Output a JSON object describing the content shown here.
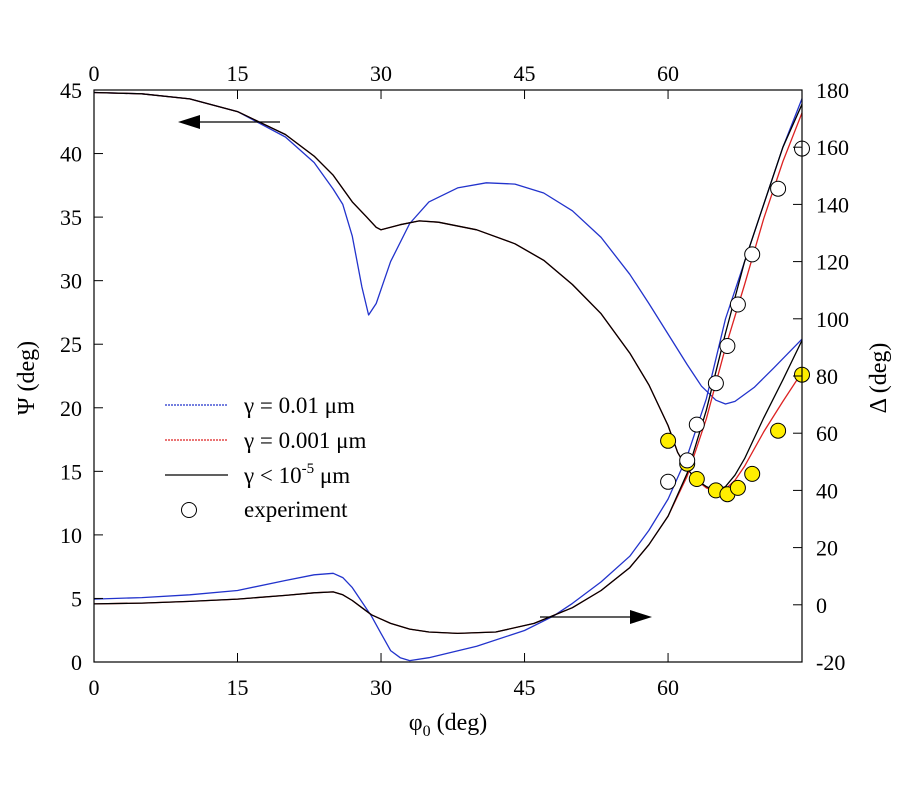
{
  "chart_data": {
    "type": "line",
    "xlabel": "φ0 (deg)",
    "ylabel_left": "Ψ (deg)",
    "ylabel_right": "Δ (deg)",
    "xlim": [
      0,
      74
    ],
    "ylim_left": [
      0,
      45
    ],
    "ylim_right": [
      -20,
      180
    ],
    "x_ticks": [
      0,
      15,
      30,
      45,
      60
    ],
    "x_tick_labels": [
      "0",
      "15",
      "30",
      "45",
      "60"
    ],
    "y_left_ticks": [
      0,
      5,
      10,
      15,
      20,
      25,
      30,
      35,
      40,
      45
    ],
    "y_left_tick_labels": [
      "0",
      "5",
      "10",
      "15",
      "20",
      "25",
      "30",
      "35",
      "40",
      "45"
    ],
    "y_right_ticks": [
      -20,
      0,
      20,
      40,
      60,
      80,
      100,
      120,
      140,
      160,
      180
    ],
    "y_right_tick_labels": [
      "-20",
      "0",
      "20",
      "40",
      "60",
      "80",
      "100",
      "120",
      "140",
      "160",
      "180"
    ],
    "legend": {
      "placement": "center-left",
      "entries": [
        {
          "label": "γ = 0.01 μm",
          "style": "line",
          "color": "#2233cc"
        },
        {
          "label": "γ = 0.001 μm",
          "style": "line",
          "color": "#dd2222"
        },
        {
          "label_main": "γ < 10",
          "label_sup": "-5",
          "label_tail": " μm",
          "style": "line",
          "color": "#000000"
        },
        {
          "label": "experiment",
          "style": "open-circle",
          "color": "#000000"
        }
      ]
    },
    "annotations": [
      {
        "type": "arrow",
        "meaning": "upper curves refer to left axis (Ψ)",
        "direction": "left"
      },
      {
        "type": "arrow",
        "meaning": "lower curves refer to right axis (Δ)",
        "direction": "right"
      }
    ],
    "series": [
      {
        "name": "Ψ, γ = 0.01 μm",
        "axis": "left",
        "color": "#2233cc",
        "points": [
          [
            0,
            44.8
          ],
          [
            5,
            44.7
          ],
          [
            10,
            44.3
          ],
          [
            15,
            43.3
          ],
          [
            20,
            41.3
          ],
          [
            23,
            39.3
          ],
          [
            25,
            37.2
          ],
          [
            26,
            36
          ],
          [
            27,
            33.5
          ],
          [
            28,
            29.5
          ],
          [
            28.7,
            27.3
          ],
          [
            29.5,
            28.2
          ],
          [
            31,
            31.5
          ],
          [
            33,
            34.5
          ],
          [
            35,
            36.2
          ],
          [
            38,
            37.3
          ],
          [
            41,
            37.7
          ],
          [
            44,
            37.6
          ],
          [
            47,
            36.9
          ],
          [
            50,
            35.5
          ],
          [
            53,
            33.4
          ],
          [
            56,
            30.5
          ],
          [
            58,
            28.2
          ],
          [
            60,
            25.8
          ],
          [
            62,
            23.4
          ],
          [
            63.5,
            21.7
          ],
          [
            65,
            20.6
          ],
          [
            66,
            20.3
          ],
          [
            67,
            20.5
          ],
          [
            69,
            21.6
          ],
          [
            71,
            23.1
          ],
          [
            74,
            25.4
          ]
        ]
      },
      {
        "name": "Ψ, γ = 0.001 μm",
        "axis": "left",
        "color": "#dd2222",
        "points": [
          [
            0,
            44.8
          ],
          [
            5,
            44.7
          ],
          [
            10,
            44.3
          ],
          [
            15,
            43.3
          ],
          [
            20,
            41.5
          ],
          [
            23,
            39.8
          ],
          [
            25,
            38.3
          ],
          [
            27,
            36.2
          ],
          [
            28.5,
            35
          ],
          [
            29.5,
            34.2
          ],
          [
            30,
            34
          ],
          [
            32,
            34.4
          ],
          [
            34,
            34.7
          ],
          [
            36,
            34.6
          ],
          [
            40,
            34
          ],
          [
            44,
            32.9
          ],
          [
            47,
            31.6
          ],
          [
            50,
            29.7
          ],
          [
            53,
            27.4
          ],
          [
            56,
            24.3
          ],
          [
            58,
            21.8
          ],
          [
            60,
            18.6
          ],
          [
            61,
            16.5
          ],
          [
            62,
            15.2
          ],
          [
            63,
            14.3
          ],
          [
            64,
            13.7
          ],
          [
            65,
            13.4
          ],
          [
            66,
            13.6
          ],
          [
            67,
            14.3
          ],
          [
            68,
            15.4
          ],
          [
            70,
            18.1
          ],
          [
            72,
            20.5
          ],
          [
            74,
            22.8
          ]
        ]
      },
      {
        "name": "Ψ, γ < 10^-5 μm",
        "axis": "left",
        "color": "#000000",
        "points": [
          [
            0,
            44.8
          ],
          [
            5,
            44.7
          ],
          [
            10,
            44.3
          ],
          [
            15,
            43.3
          ],
          [
            20,
            41.5
          ],
          [
            23,
            39.8
          ],
          [
            25,
            38.3
          ],
          [
            27,
            36.2
          ],
          [
            28.5,
            35
          ],
          [
            29.5,
            34.2
          ],
          [
            30,
            34
          ],
          [
            32,
            34.4
          ],
          [
            34,
            34.7
          ],
          [
            36,
            34.6
          ],
          [
            40,
            34
          ],
          [
            44,
            32.9
          ],
          [
            47,
            31.6
          ],
          [
            50,
            29.7
          ],
          [
            53,
            27.4
          ],
          [
            56,
            24.3
          ],
          [
            58,
            21.8
          ],
          [
            60,
            18.6
          ],
          [
            61,
            16.5
          ],
          [
            62,
            15.2
          ],
          [
            63,
            14.3
          ],
          [
            64,
            13.8
          ],
          [
            65,
            13.5
          ],
          [
            66,
            13.8
          ],
          [
            67,
            14.7
          ],
          [
            68,
            16
          ],
          [
            70,
            19.2
          ],
          [
            72,
            22.2
          ],
          [
            74,
            25.3
          ]
        ]
      },
      {
        "name": "Δ, γ = 0.01 μm",
        "axis": "right",
        "color": "#2233cc",
        "points": [
          [
            0,
            2
          ],
          [
            5,
            2.5
          ],
          [
            10,
            3.5
          ],
          [
            15,
            5
          ],
          [
            20,
            8.5
          ],
          [
            23,
            10.5
          ],
          [
            25,
            11
          ],
          [
            26,
            9.5
          ],
          [
            27,
            6
          ],
          [
            28,
            1
          ],
          [
            29,
            -4
          ],
          [
            30,
            -10
          ],
          [
            31,
            -16
          ],
          [
            32,
            -18.5
          ],
          [
            33,
            -19.5
          ],
          [
            35,
            -18.5
          ],
          [
            40,
            -14.5
          ],
          [
            45,
            -9
          ],
          [
            48,
            -4
          ],
          [
            50,
            0.5
          ],
          [
            53,
            8
          ],
          [
            56,
            17
          ],
          [
            58,
            26
          ],
          [
            60,
            37
          ],
          [
            62,
            52
          ],
          [
            64,
            72
          ],
          [
            66,
            100
          ],
          [
            68,
            120
          ],
          [
            70,
            140
          ],
          [
            72,
            160
          ],
          [
            74,
            177
          ]
        ]
      },
      {
        "name": "Δ, γ = 0.001 μm",
        "axis": "right",
        "color": "#dd2222",
        "points": [
          [
            0,
            0.3
          ],
          [
            5,
            0.6
          ],
          [
            10,
            1.2
          ],
          [
            15,
            2
          ],
          [
            20,
            3.3
          ],
          [
            23,
            4.2
          ],
          [
            25,
            4.5
          ],
          [
            26,
            3.5
          ],
          [
            27,
            1.5
          ],
          [
            28,
            -1
          ],
          [
            29,
            -3.5
          ],
          [
            31,
            -6.5
          ],
          [
            33,
            -8.5
          ],
          [
            35,
            -9.5
          ],
          [
            38,
            -10
          ],
          [
            42,
            -9.5
          ],
          [
            46,
            -6.5
          ],
          [
            50,
            -1
          ],
          [
            53,
            5
          ],
          [
            56,
            13
          ],
          [
            58,
            21
          ],
          [
            60,
            31
          ],
          [
            62,
            45
          ],
          [
            64,
            65
          ],
          [
            66,
            90
          ],
          [
            68,
            112
          ],
          [
            70,
            135
          ],
          [
            72,
            155
          ],
          [
            74,
            172
          ]
        ]
      },
      {
        "name": "Δ, γ < 10^-5 μm",
        "axis": "right",
        "color": "#000000",
        "points": [
          [
            0,
            0.3
          ],
          [
            5,
            0.6
          ],
          [
            10,
            1.2
          ],
          [
            15,
            2
          ],
          [
            20,
            3.3
          ],
          [
            23,
            4.2
          ],
          [
            25,
            4.5
          ],
          [
            26,
            3.5
          ],
          [
            27,
            1.5
          ],
          [
            28,
            -1
          ],
          [
            29,
            -3.5
          ],
          [
            31,
            -6.5
          ],
          [
            33,
            -8.5
          ],
          [
            35,
            -9.5
          ],
          [
            38,
            -10
          ],
          [
            42,
            -9.5
          ],
          [
            46,
            -6.5
          ],
          [
            50,
            -1
          ],
          [
            53,
            5
          ],
          [
            56,
            13
          ],
          [
            58,
            21
          ],
          [
            60,
            31
          ],
          [
            62,
            46
          ],
          [
            64,
            68
          ],
          [
            66,
            95
          ],
          [
            68,
            120
          ],
          [
            70,
            140
          ],
          [
            72,
            160
          ],
          [
            74,
            175
          ]
        ]
      },
      {
        "name": "Ψ experiment",
        "axis": "left",
        "marker": "filled-circle",
        "color": "#ffee00",
        "points": [
          [
            60,
            17.4
          ],
          [
            62,
            15.6
          ],
          [
            63,
            14.4
          ],
          [
            65,
            13.5
          ],
          [
            66.2,
            13.2
          ],
          [
            67.3,
            13.7
          ],
          [
            68.8,
            14.8
          ],
          [
            71.5,
            18.2
          ],
          [
            74,
            22.6
          ]
        ]
      },
      {
        "name": "Δ experiment",
        "axis": "right",
        "marker": "open-circle",
        "color": "#ffffff",
        "points": [
          [
            60,
            43
          ],
          [
            62,
            50.5
          ],
          [
            63,
            63
          ],
          [
            65,
            77.5
          ],
          [
            66.2,
            90.5
          ],
          [
            67.3,
            105
          ],
          [
            68.8,
            122.5
          ],
          [
            71.5,
            145.5
          ],
          [
            74,
            159.5
          ]
        ]
      }
    ]
  }
}
